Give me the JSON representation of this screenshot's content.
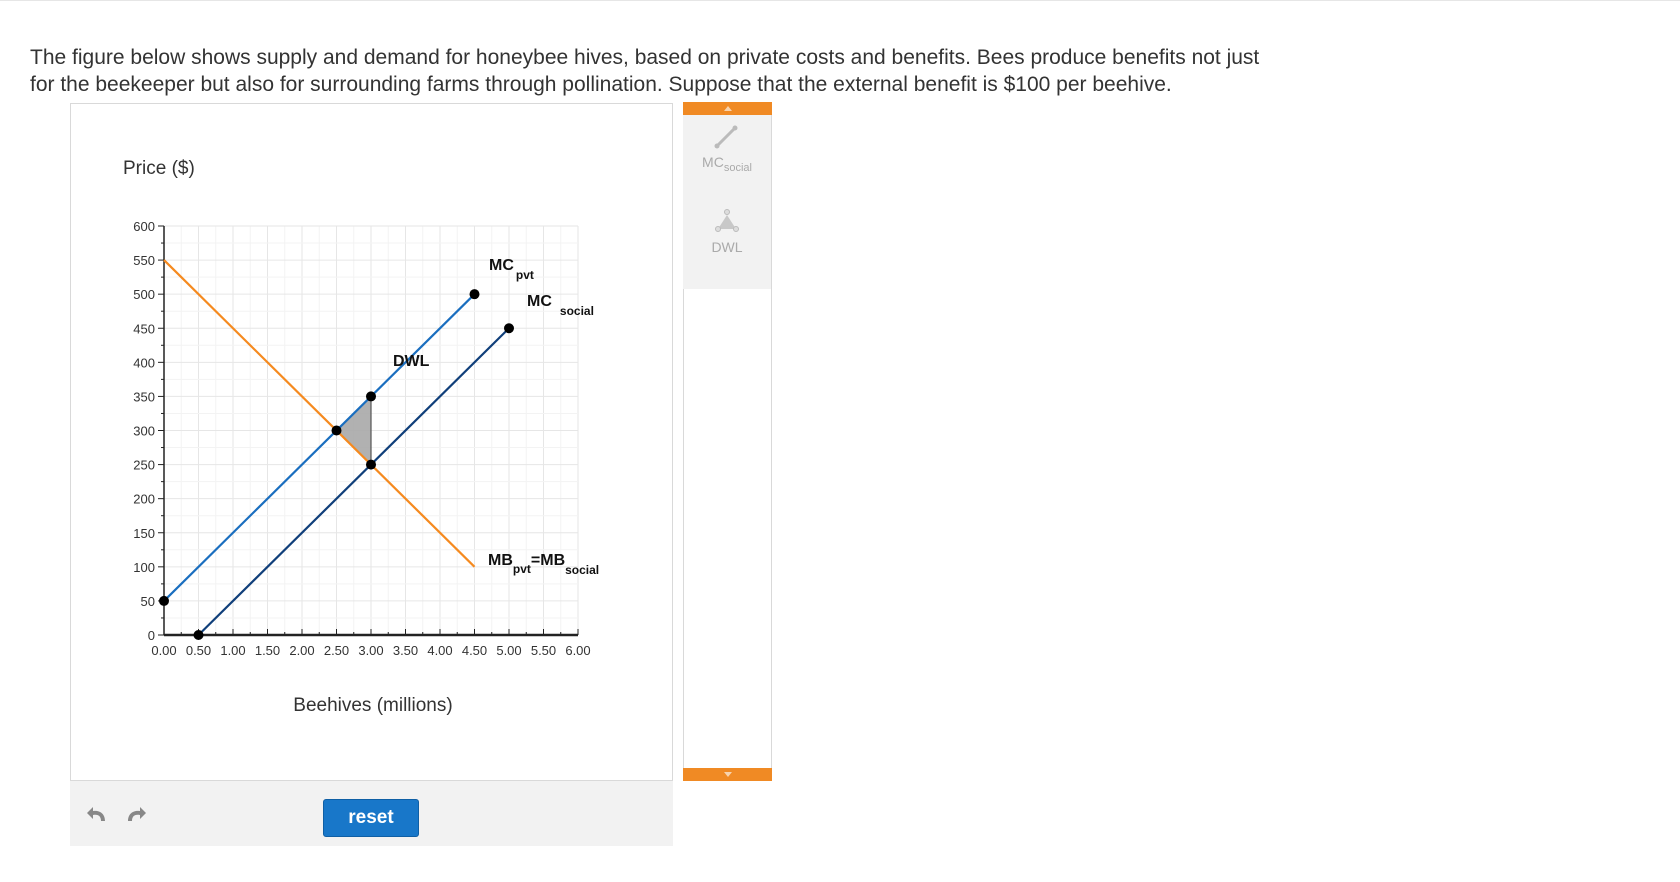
{
  "question": {
    "line1": "The figure below shows supply and demand for honeybee hives, based on private costs and benefits. Bees produce benefits not just",
    "line2": "for the beekeeper but also for surrounding farms through pollination. Suppose that the external benefit is $100 per beehive."
  },
  "chart_data": {
    "type": "line",
    "ylabel": "Price ($)",
    "xlabel": "Beehives (millions)",
    "xlim": [
      0,
      6
    ],
    "ylim": [
      0,
      600
    ],
    "x_ticks": [
      "0.00",
      "0.50",
      "1.00",
      "1.50",
      "2.00",
      "2.50",
      "3.00",
      "3.50",
      "4.00",
      "4.50",
      "5.00",
      "5.50",
      "6.00"
    ],
    "y_ticks": [
      "0",
      "50",
      "100",
      "150",
      "200",
      "250",
      "300",
      "350",
      "400",
      "450",
      "500",
      "550",
      "600"
    ],
    "grid": true,
    "series": [
      {
        "name": "MB_pvt=MB_social",
        "label_main": "MB",
        "label_sub1": "pvt",
        "label_mid": "=MB",
        "label_sub2": "social",
        "color": "#f58a1f",
        "x": [
          0,
          4.5
        ],
        "y": [
          550,
          100
        ],
        "endpoints": false
      },
      {
        "name": "MC_pvt",
        "label_main": "MC",
        "label_sub": "pvt",
        "color": "#1a6ebf",
        "x": [
          0,
          4.5
        ],
        "y": [
          50,
          500
        ],
        "endpoints": true
      },
      {
        "name": "MC_social",
        "label_main": "MC",
        "label_sub": "social",
        "color": "#103f7a",
        "x": [
          0.5,
          5
        ],
        "y": [
          0,
          450
        ],
        "endpoints": true
      }
    ],
    "dwl": {
      "label": "DWL",
      "points": [
        [
          2.5,
          300
        ],
        [
          3,
          350
        ],
        [
          3,
          250
        ]
      ],
      "fill": "#a8a8a8"
    },
    "points": [
      [
        2.5,
        300
      ],
      [
        3,
        350
      ],
      [
        3,
        250
      ]
    ]
  },
  "toolbar": {
    "reset_label": "reset",
    "undo": "undo-icon",
    "redo": "redo-icon"
  },
  "tools": {
    "mc_main": "MC",
    "mc_sub": "social",
    "dwl_label": "DWL"
  },
  "colors": {
    "accent": "#f08a24",
    "button": "#1877c9"
  }
}
